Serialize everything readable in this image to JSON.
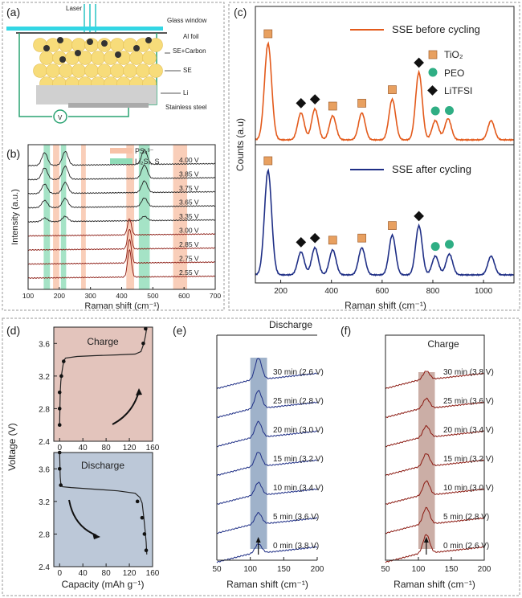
{
  "colors": {
    "orange": "#e35a1b",
    "navy": "#1f2f86",
    "darkred": "#8b1a12",
    "teal": "#2fae84",
    "green_band": "#8fdcb8",
    "pink_band": "#f7c2a8",
    "tio2": "#e8a060",
    "charge_bg": "#e3c4bc",
    "discharge_bg": "#bcc8d8",
    "band_blue": "#7f98b8",
    "band_brown": "#b58c80"
  },
  "panel_a": {
    "label": "(a)",
    "labels": {
      "laser": "Laser",
      "glass": "Glass window",
      "al": "Al foil",
      "se_carbon": "SE+Carbon",
      "se": "SE",
      "li": "Li",
      "steel": "Stainless steel",
      "v": "V"
    }
  },
  "panel_b": {
    "label": "(b)",
    "chart_data": {
      "type": "line",
      "title": "",
      "xlabel": "Raman shift (cm⁻¹)",
      "ylabel": "Intensity (a.u.)",
      "xlim": [
        100,
        700
      ],
      "xticks": [
        "100",
        "200",
        "300",
        "400",
        "500",
        "600",
        "700"
      ],
      "legend": [
        {
          "label": "PS₄³⁻",
          "color": "pink"
        },
        {
          "label": "Li₂Sₓ, S",
          "color": "green"
        }
      ],
      "bands_green": [
        [
          150,
          170
        ],
        [
          205,
          222
        ],
        [
          455,
          490
        ]
      ],
      "bands_pink": [
        [
          180,
          200
        ],
        [
          270,
          285
        ],
        [
          415,
          440
        ],
        [
          565,
          610
        ]
      ],
      "series": [
        {
          "name": "4.00 V",
          "peaks": [
            [
              153,
              3.5
            ],
            [
              219,
              3.8
            ],
            [
              473,
              4.0
            ]
          ]
        },
        {
          "name": "3.85 V",
          "peaks": [
            [
              153,
              3.2
            ],
            [
              219,
              3.6
            ],
            [
              473,
              3.7
            ]
          ]
        },
        {
          "name": "3.75 V",
          "peaks": [
            [
              153,
              2.6
            ],
            [
              219,
              3.0
            ],
            [
              473,
              3.2
            ]
          ]
        },
        {
          "name": "3.65 V",
          "peaks": [
            [
              153,
              2.0
            ],
            [
              219,
              2.5
            ],
            [
              473,
              2.4
            ]
          ]
        },
        {
          "name": "3.35 V",
          "peaks": [
            [
              153,
              1.0
            ],
            [
              219,
              1.4
            ],
            [
              473,
              1.2
            ]
          ]
        },
        {
          "name": "3.00 V",
          "peaks": [
            [
              425,
              4.5
            ]
          ]
        },
        {
          "name": "2.85 V",
          "peaks": [
            [
              425,
              5.5
            ]
          ]
        },
        {
          "name": "2.75 V",
          "peaks": [
            [
              425,
              6.5
            ]
          ]
        },
        {
          "name": "2.55 V",
          "peaks": [
            [
              425,
              7.5
            ]
          ]
        }
      ]
    }
  },
  "panel_c": {
    "label": "(c)",
    "chart_data": {
      "type": "line",
      "xlabel": "Raman shift (cm⁻¹)",
      "ylabel": "Counts (a.u)",
      "xlim": [
        100,
        1120
      ],
      "xticks": [
        "200",
        "400",
        "600",
        "800",
        "1000"
      ],
      "legend_top": "SSE before cycling",
      "legend_bottom": "SSE after cycling",
      "markers_legend": [
        "TiO₂",
        "PEO",
        "LiTFSI"
      ],
      "before": {
        "peaks": [
          [
            150,
            10
          ],
          [
            280,
            2.8
          ],
          [
            335,
            3.2
          ],
          [
            405,
            2.5
          ],
          [
            520,
            2.8
          ],
          [
            640,
            4.2
          ],
          [
            745,
            7.0
          ],
          [
            810,
            2.0
          ],
          [
            860,
            2.2
          ],
          [
            1030,
            2.0
          ]
        ]
      },
      "after": {
        "peaks": [
          [
            150,
            10
          ],
          [
            280,
            2.2
          ],
          [
            335,
            2.6
          ],
          [
            405,
            2.4
          ],
          [
            520,
            2.6
          ],
          [
            640,
            3.8
          ],
          [
            745,
            4.7
          ],
          [
            810,
            1.8
          ],
          [
            865,
            2.0
          ],
          [
            1030,
            1.8
          ]
        ]
      },
      "markers": [
        {
          "type": "TiO2",
          "x": 150
        },
        {
          "type": "LiTFSI",
          "x": 280
        },
        {
          "type": "LiTFSI",
          "x": 335
        },
        {
          "type": "TiO2",
          "x": 405
        },
        {
          "type": "TiO2",
          "x": 520
        },
        {
          "type": "TiO2",
          "x": 640
        },
        {
          "type": "LiTFSI",
          "x": 745
        },
        {
          "type": "PEO",
          "x": 810
        },
        {
          "type": "PEO",
          "x": 865
        }
      ]
    }
  },
  "panel_d": {
    "label": "(d)",
    "chart_data": {
      "type": "line",
      "xlabel": "Capacity (mAh g⁻¹)",
      "ylabel": "Voltage (V)",
      "xlim": [
        -10,
        160
      ],
      "ylim": [
        2.4,
        3.8
      ],
      "xticks": [
        "0",
        "40",
        "80",
        "120",
        "160"
      ],
      "yticks": [
        "2.4",
        "2.8",
        "3.2",
        "3.6"
      ],
      "charge": {
        "title": "Charge",
        "x": [
          0,
          0.5,
          1,
          2,
          3,
          5,
          7,
          10,
          30,
          60,
          100,
          130,
          140,
          145,
          148,
          150
        ],
        "y": [
          2.6,
          2.8,
          3.0,
          3.13,
          3.2,
          3.3,
          3.38,
          3.42,
          3.44,
          3.45,
          3.46,
          3.47,
          3.5,
          3.6,
          3.7,
          3.8
        ]
      },
      "charge_points": [
        [
          0,
          2.6
        ],
        [
          0,
          2.8
        ],
        [
          0,
          3.0
        ],
        [
          3,
          3.2
        ],
        [
          7,
          3.38
        ],
        [
          144,
          3.6
        ],
        [
          148,
          3.78
        ]
      ],
      "discharge": {
        "title": "Discharge",
        "x": [
          0,
          0.3,
          0.6,
          1,
          2,
          5,
          20,
          60,
          100,
          130,
          138,
          142,
          145,
          147,
          149,
          150
        ],
        "y": [
          3.8,
          3.7,
          3.6,
          3.5,
          3.42,
          3.38,
          3.37,
          3.35,
          3.33,
          3.3,
          3.25,
          3.18,
          3.0,
          2.85,
          2.7,
          2.55
        ]
      },
      "discharge_points": [
        [
          0,
          3.8
        ],
        [
          0,
          3.6
        ],
        [
          2,
          3.4
        ],
        [
          134,
          3.2
        ],
        [
          142,
          3.0
        ],
        [
          146,
          2.8
        ],
        [
          149,
          2.6
        ]
      ]
    }
  },
  "panel_e": {
    "label": "(e)",
    "chart_data": {
      "type": "line",
      "title": "Discharge",
      "xlabel": "Raman shift (cm⁻¹)",
      "xlim": [
        50,
        200
      ],
      "xticks": [
        "50",
        "100",
        "150",
        "200"
      ],
      "peak_center": 112,
      "band": [
        100,
        125
      ],
      "series": [
        {
          "name": "30 min (2.6 V)",
          "peak": 3.0
        },
        {
          "name": "25 min (2.8 V)",
          "peak": 2.5
        },
        {
          "name": "20 min (3.0 V)",
          "peak": 2.2
        },
        {
          "name": "15 min (3.2 V)",
          "peak": 2.0
        },
        {
          "name": "10 min (3.4 V)",
          "peak": 1.8
        },
        {
          "name": "5 min (3.6 V)",
          "peak": 1.6
        },
        {
          "name": "0 min (3.8 V)",
          "peak": 1.3
        }
      ]
    }
  },
  "panel_f": {
    "label": "(f)",
    "chart_data": {
      "type": "line",
      "title": "Charge",
      "xlabel": "Raman shift (cm⁻¹)",
      "xlim": [
        50,
        200
      ],
      "xticks": [
        "50",
        "100",
        "150",
        "200"
      ],
      "peak_center": 112,
      "band": [
        100,
        125
      ],
      "series": [
        {
          "name": "30 min (3.8 V)",
          "peak": 1.2
        },
        {
          "name": "25 min (3.6 V)",
          "peak": 1.4
        },
        {
          "name": "20 min (3.4 V)",
          "peak": 1.6
        },
        {
          "name": "15 min (3.2 V)",
          "peak": 1.8
        },
        {
          "name": "10 min (3.0 V)",
          "peak": 2.0
        },
        {
          "name": "5 min (2.8 V)",
          "peak": 2.3
        },
        {
          "name": "0 min (2.6 V)",
          "peak": 2.6
        }
      ]
    }
  }
}
